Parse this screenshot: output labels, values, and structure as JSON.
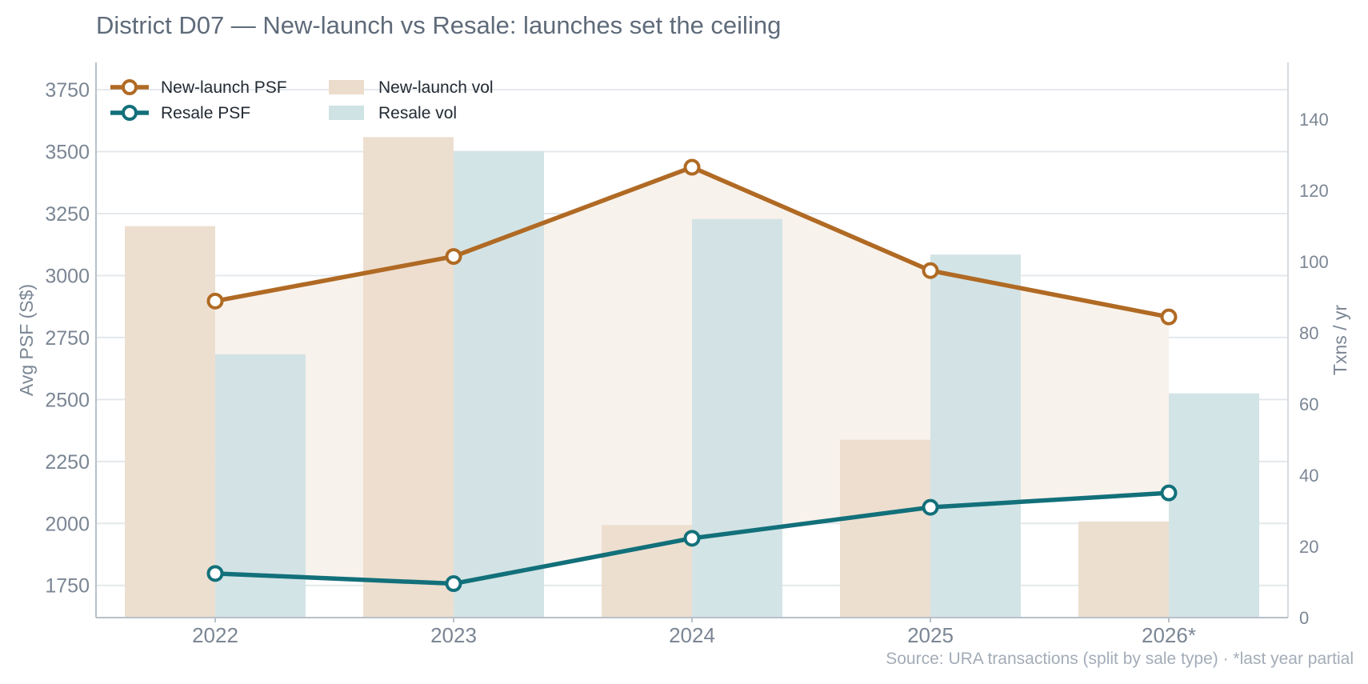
{
  "chart_data": {
    "type": "bar+line",
    "title": "District D07 — New-launch vs Resale: launches set the ceiling",
    "source_note": "Source: URA transactions (split by sale type) · *last year partial",
    "categories": [
      "2022",
      "2023",
      "2024",
      "2025",
      "2026*"
    ],
    "y_left": {
      "label": "Avg PSF (S$)",
      "min": 1620,
      "max": 3860,
      "ticks": [
        1750,
        2000,
        2250,
        2500,
        2750,
        3000,
        3250,
        3500,
        3750
      ]
    },
    "y_right": {
      "label": "Txns / yr",
      "min": 0,
      "max": 156,
      "ticks": [
        0,
        20,
        40,
        60,
        80,
        100,
        120,
        140
      ]
    },
    "line_series": [
      {
        "name": "New-launch PSF",
        "axis": "left",
        "color": "#b06a24",
        "values": [
          2897,
          3077,
          3437,
          3020,
          2833
        ]
      },
      {
        "name": "Resale PSF",
        "axis": "left",
        "color": "#12707a",
        "values": [
          1798,
          1757,
          1940,
          2065,
          2123
        ]
      }
    ],
    "bar_series": [
      {
        "name": "New-launch vol",
        "axis": "right",
        "color": "#ecdccc",
        "values": [
          110,
          135,
          26,
          50,
          27
        ]
      },
      {
        "name": "Resale vol",
        "axis": "right",
        "color": "#cfe2e4",
        "values": [
          74,
          131,
          112,
          102,
          63
        ]
      }
    ],
    "grid": true,
    "legend_position": "top-left"
  }
}
